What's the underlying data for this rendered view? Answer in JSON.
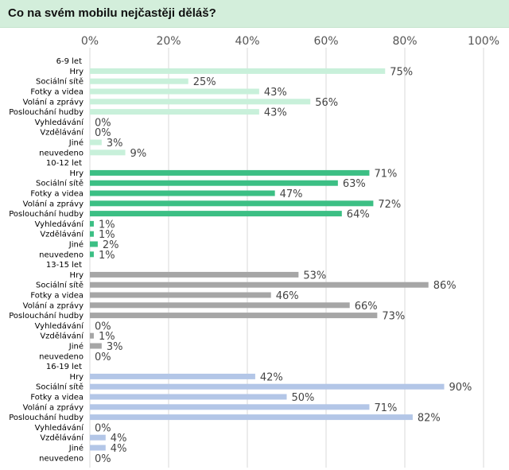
{
  "title": "Co na svém mobilu nejčastěji děláš?",
  "colors": {
    "title_bg": "#d3eedb",
    "grid": "#d9d9d9",
    "series": [
      "#c8f0da",
      "#3cbf84",
      "#a6a6a6",
      "#b3c6e7"
    ]
  },
  "chart_data": {
    "type": "bar",
    "orientation": "horizontal",
    "title": "Co na svém mobilu nejčastěji děláš?",
    "xlim": [
      0,
      100
    ],
    "x_ticks": [
      "0%",
      "20%",
      "40%",
      "60%",
      "80%",
      "100%"
    ],
    "x_tick_values": [
      0,
      20,
      40,
      60,
      80,
      100
    ],
    "x_axis_position": "top",
    "grid": true,
    "legend": "none",
    "groups": [
      {
        "name": "6-9 let",
        "categories": [
          "Hry",
          "Sociální sítě",
          "Fotky a videa",
          "Volání a zprávy",
          "Poslouchání hudby",
          "Vyhledávání",
          "Vzdělávání",
          "Jiné",
          "neuvedeno"
        ],
        "values": [
          75,
          25,
          43,
          56,
          43,
          0,
          0,
          3,
          9
        ],
        "labels": [
          "75%",
          "25%",
          "43%",
          "56%",
          "43%",
          "0%",
          "0%",
          "3%",
          "9%"
        ]
      },
      {
        "name": "10-12 let",
        "categories": [
          "Hry",
          "Sociální sítě",
          "Fotky a videa",
          "Volání a zprávy",
          "Poslouchání hudby",
          "Vyhledávání",
          "Vzdělávání",
          "Jiné",
          "neuvedeno"
        ],
        "values": [
          71,
          63,
          47,
          72,
          64,
          1,
          1,
          2,
          1
        ],
        "labels": [
          "71%",
          "63%",
          "47%",
          "72%",
          "64%",
          "1%",
          "1%",
          "2%",
          "1%"
        ]
      },
      {
        "name": "13-15 let",
        "categories": [
          "Hry",
          "Sociální sítě",
          "Fotky a videa",
          "Volání a zprávy",
          "Poslouchání hudby",
          "Vyhledávání",
          "Vzdělávání",
          "Jiné",
          "neuvedeno"
        ],
        "values": [
          53,
          86,
          46,
          66,
          73,
          0,
          1,
          3,
          0
        ],
        "labels": [
          "53%",
          "86%",
          "46%",
          "66%",
          "73%",
          "0%",
          "1%",
          "3%",
          "0%"
        ]
      },
      {
        "name": "16-19 let",
        "categories": [
          "Hry",
          "Sociální sítě",
          "Fotky a videa",
          "Volání a zprávy",
          "Poslouchání hudby",
          "Vyhledávání",
          "Vzdělávání",
          "Jiné",
          "neuvedeno"
        ],
        "values": [
          42,
          90,
          50,
          71,
          82,
          0,
          4,
          4,
          0
        ],
        "labels": [
          "42%",
          "90%",
          "50%",
          "71%",
          "82%",
          "0%",
          "4%",
          "4%",
          "0%"
        ]
      }
    ]
  }
}
